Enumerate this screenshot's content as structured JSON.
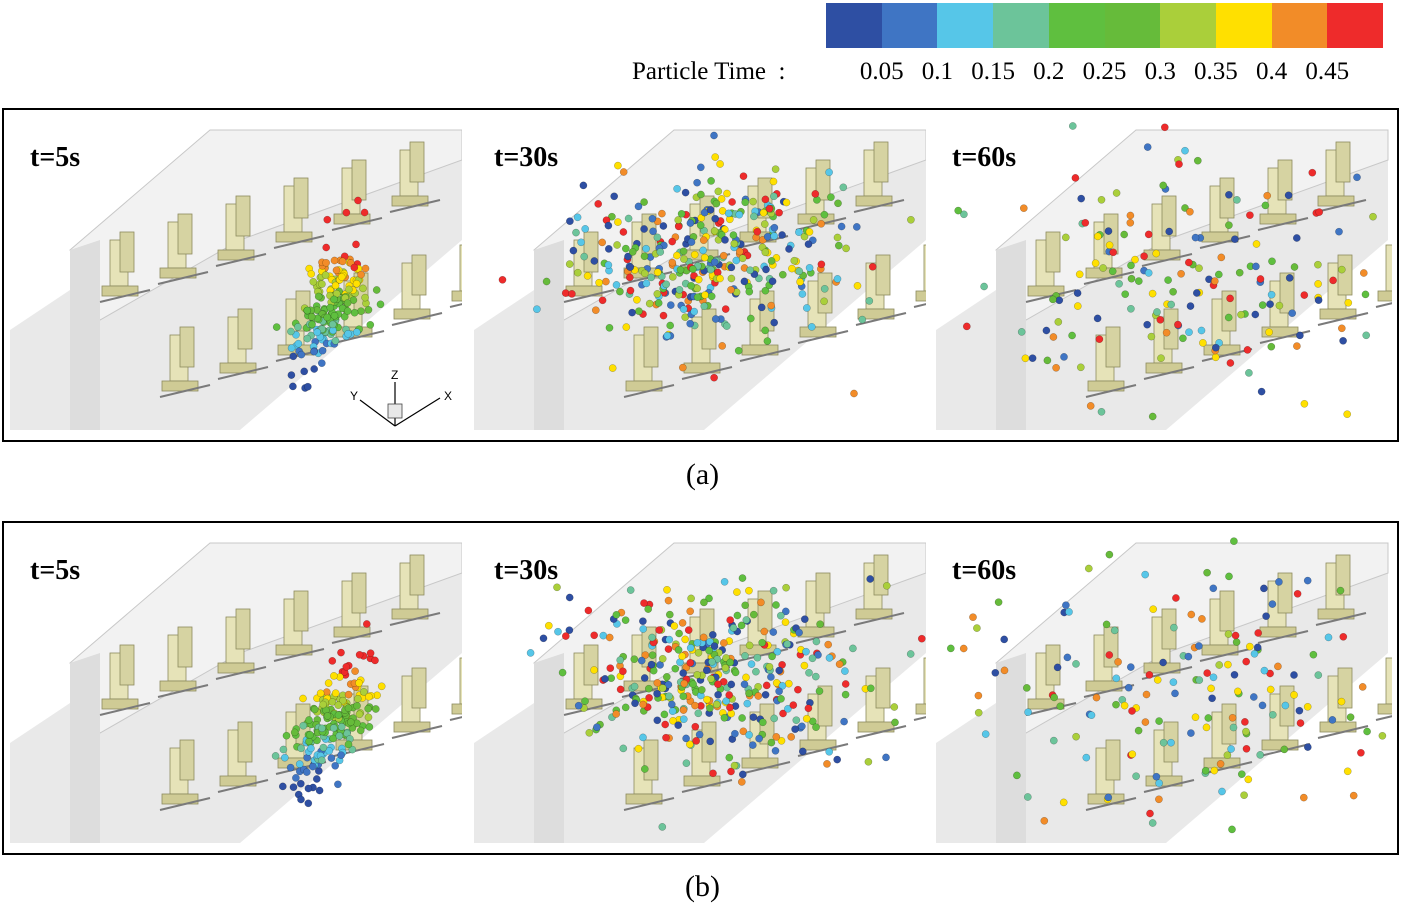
{
  "legend": {
    "title": "Particle Time  :",
    "ticks": [
      "0.05",
      "0.1",
      "0.15",
      "0.2",
      "0.25",
      "0.3",
      "0.35",
      "0.4",
      "0.45"
    ],
    "colors": [
      "#2e4fa3",
      "#3f75c4",
      "#56c6e8",
      "#6cc49a",
      "#5fbf3f",
      "#66bb3a",
      "#aacf3a",
      "#ffe000",
      "#f28c28",
      "#ee2b2b"
    ]
  },
  "panels": [
    {
      "id": "a",
      "caption": "(a)",
      "scenes": [
        {
          "time": "t=5s",
          "state": "cluster"
        },
        {
          "time": "t=30s",
          "state": "spread"
        },
        {
          "time": "t=60s",
          "state": "dispersed"
        }
      ]
    },
    {
      "id": "b",
      "caption": "(b)",
      "scenes": [
        {
          "time": "t=5s",
          "state": "cluster"
        },
        {
          "time": "t=30s",
          "state": "spread"
        },
        {
          "time": "t=60s",
          "state": "dispersed"
        }
      ]
    }
  ],
  "axes": {
    "x": "X",
    "y": "Y",
    "z": "Z"
  }
}
